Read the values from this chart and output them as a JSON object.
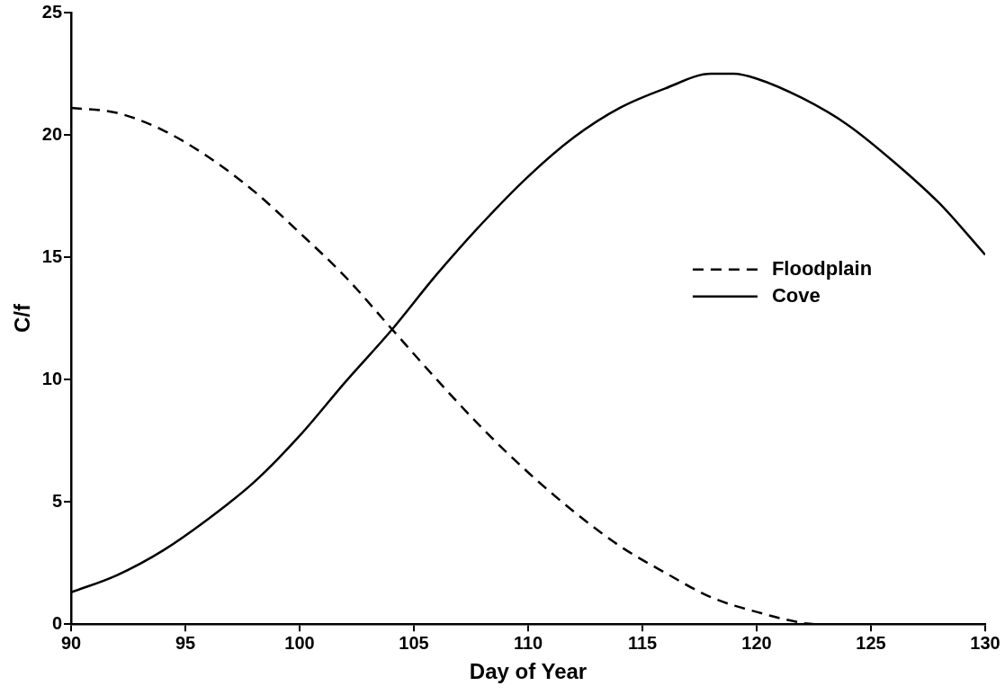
{
  "chart_data": {
    "type": "line",
    "xlabel": "Day of Year",
    "ylabel": "C/f",
    "xlim": [
      90,
      130
    ],
    "xticks": [
      90,
      95,
      100,
      105,
      110,
      115,
      120,
      125,
      130
    ],
    "ylim": [
      0,
      25
    ],
    "yticks": [
      0,
      5,
      10,
      15,
      20,
      25
    ],
    "grid": false,
    "legend": "right",
    "marker": "none",
    "series": [
      {
        "name": "Floodplain",
        "color": "#000000",
        "line_style": "dashed",
        "x": [
          90,
          92,
          94,
          96,
          98,
          100,
          102,
          104,
          106,
          108,
          110,
          112,
          114,
          116,
          118,
          120,
          122,
          122.5
        ],
        "values": [
          21.1,
          20.9,
          20.2,
          19.1,
          17.7,
          16.0,
          14.2,
          12.1,
          10.0,
          8.0,
          6.2,
          4.6,
          3.2,
          2.1,
          1.1,
          0.5,
          0.05,
          0.0
        ]
      },
      {
        "name": "Cove",
        "color": "#000000",
        "line_style": "solid",
        "x": [
          90,
          92,
          94,
          96,
          98,
          100,
          102,
          104,
          106,
          108,
          110,
          112,
          114,
          116,
          118,
          119,
          120,
          122,
          124,
          126,
          128,
          130
        ],
        "values": [
          1.3,
          2.0,
          3.0,
          4.3,
          5.8,
          7.7,
          9.9,
          12.0,
          14.3,
          16.4,
          18.3,
          19.9,
          21.1,
          21.9,
          22.5,
          22.5,
          22.3,
          21.5,
          20.4,
          18.9,
          17.2,
          15.1
        ]
      }
    ]
  }
}
